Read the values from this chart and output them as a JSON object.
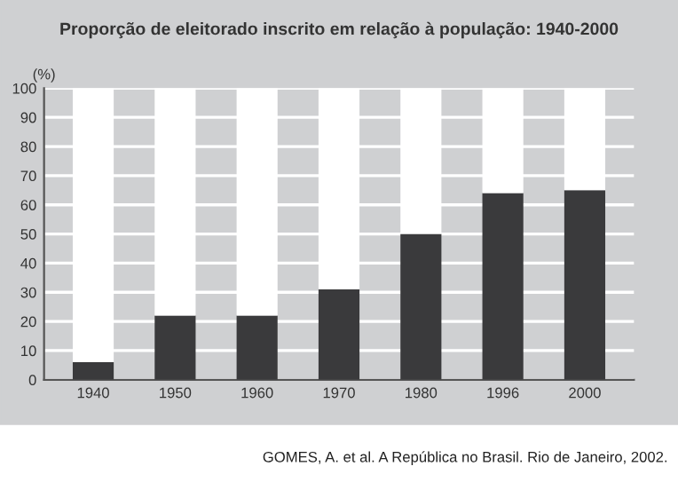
{
  "chart_data": {
    "type": "bar",
    "title": "Proporção de eleitorado inscrito em relação à população: 1940-2000",
    "ylabel": "(%)",
    "categories": [
      "1940",
      "1950",
      "1960",
      "1970",
      "1980",
      "1996",
      "2000"
    ],
    "stacked": true,
    "series": [
      {
        "color": "#3a3a3c",
        "values": [
          6,
          22,
          22,
          31,
          50,
          64,
          65
        ]
      },
      {
        "color": "#ffffff",
        "values": [
          94,
          78,
          78,
          69,
          50,
          36,
          35
        ]
      }
    ],
    "ylim": [
      0,
      100
    ],
    "yticks": [
      0,
      10,
      20,
      30,
      40,
      50,
      60,
      70,
      80,
      90,
      100
    ],
    "grid": "y",
    "annotations": [
      "GOMES, A. et al. A República no Brasil. Rio de Janeiro, 2002."
    ]
  }
}
